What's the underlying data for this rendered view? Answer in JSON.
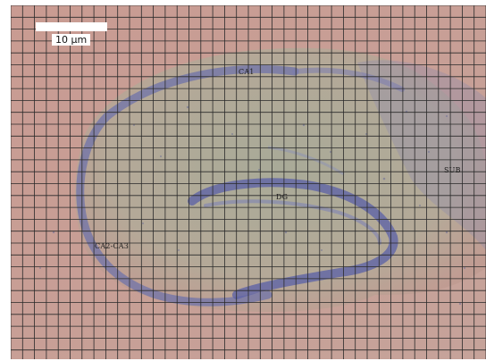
{
  "scale_bar": {
    "label": "10 µm"
  },
  "regions": {
    "ca1": "CA1",
    "dg": "DG",
    "sub": "SUB",
    "ca2_ca3": "CA2-CA3"
  },
  "colors": {
    "background_tissue": "#c89a91",
    "stained_tissue": "#a9aa9a",
    "nissl_stain": "#7d80b0",
    "grid_lines": "#2a2a2a"
  }
}
